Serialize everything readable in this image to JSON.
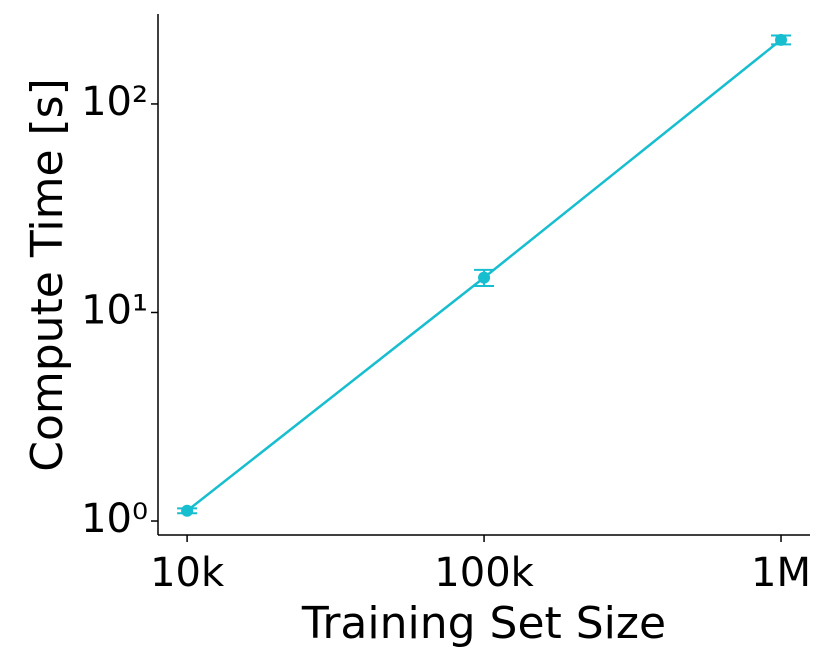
{
  "chart_data": {
    "type": "line",
    "x_label": "Training Set Size",
    "y_label": "Compute Time [s]",
    "x": [
      10000,
      100000,
      1000000
    ],
    "series": [
      {
        "color": "#17becf",
        "values": [
          1.12,
          14.7,
          203
        ],
        "errors": [
          0.03,
          1.3,
          10
        ]
      }
    ],
    "xlim": [
      7980,
      1252000
    ],
    "ylim": [
      0.857,
      270
    ],
    "xticks": [
      {
        "value": 10000,
        "label": "10k"
      },
      {
        "value": 100000,
        "label": "100k"
      },
      {
        "value": 1000000,
        "label": "1M"
      }
    ],
    "yticks": [
      {
        "value": 1,
        "label": "10⁰"
      },
      {
        "value": 10,
        "label": "10¹"
      },
      {
        "value": 100,
        "label": "10²"
      }
    ],
    "xscale": "log",
    "yscale": "log",
    "grid": false
  }
}
